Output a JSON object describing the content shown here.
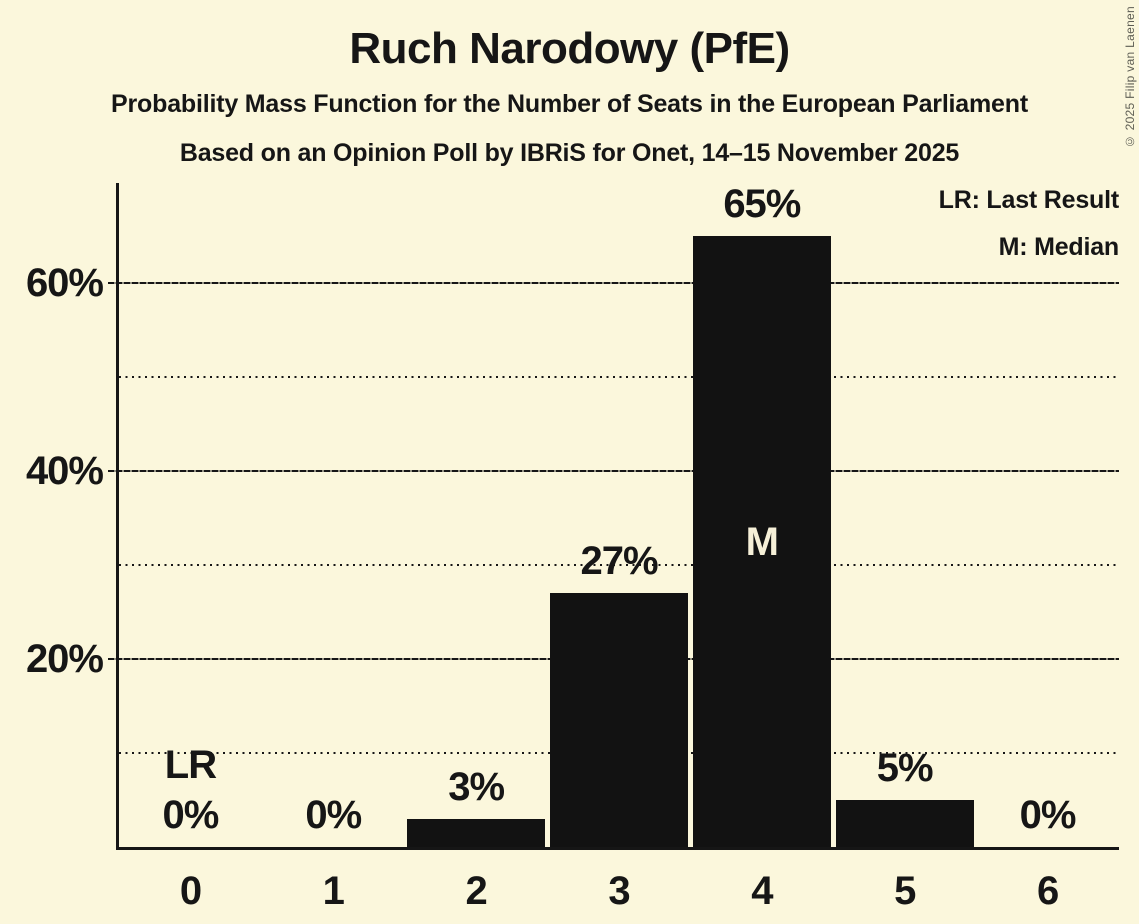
{
  "title": "Ruch Narodowy (PfE)",
  "subtitle": "Probability Mass Function for the Number of Seats in the European Parliament",
  "poll_line": "Based on an Opinion Poll by IBRiS for Onet, 14–15 November 2025",
  "copyright": "© 2025 Filip van Laenen",
  "legend": {
    "lr": "LR: Last Result",
    "m": "M: Median"
  },
  "colors": {
    "background": "#FBF7DC",
    "bar": "#121212",
    "text": "#161616",
    "bar_label_on_bar": "#F6F0D8",
    "copyright_text": "#5E5E54"
  },
  "chart_data": {
    "type": "bar",
    "title": "Ruch Narodowy (PfE)",
    "subtitle": "Probability Mass Function for the Number of Seats in the European Parliament",
    "source_line": "Based on an Opinion Poll by IBRiS for Onet, 14–15 November 2025",
    "categories": [
      "0",
      "1",
      "2",
      "3",
      "4",
      "5",
      "6"
    ],
    "values": [
      0,
      0,
      3,
      27,
      65,
      5,
      0
    ],
    "value_labels": [
      "0%",
      "0%",
      "3%",
      "27%",
      "65%",
      "5%",
      "0%"
    ],
    "xlabel": "",
    "ylabel": "",
    "ylim": [
      0,
      70
    ],
    "grid": "horizontal",
    "gridlines_solid": [
      20,
      40,
      60
    ],
    "gridlines_dotted": [
      10,
      30,
      50
    ],
    "ytick_labels": [
      "20%",
      "40%",
      "60%"
    ],
    "legend_position": "top-right",
    "legend_entries": [
      "LR: Last Result",
      "M: Median"
    ],
    "annotations": [
      {
        "category": "0",
        "label": "LR",
        "meaning": "Last Result"
      },
      {
        "category": "4",
        "label": "M",
        "meaning": "Median"
      }
    ]
  }
}
